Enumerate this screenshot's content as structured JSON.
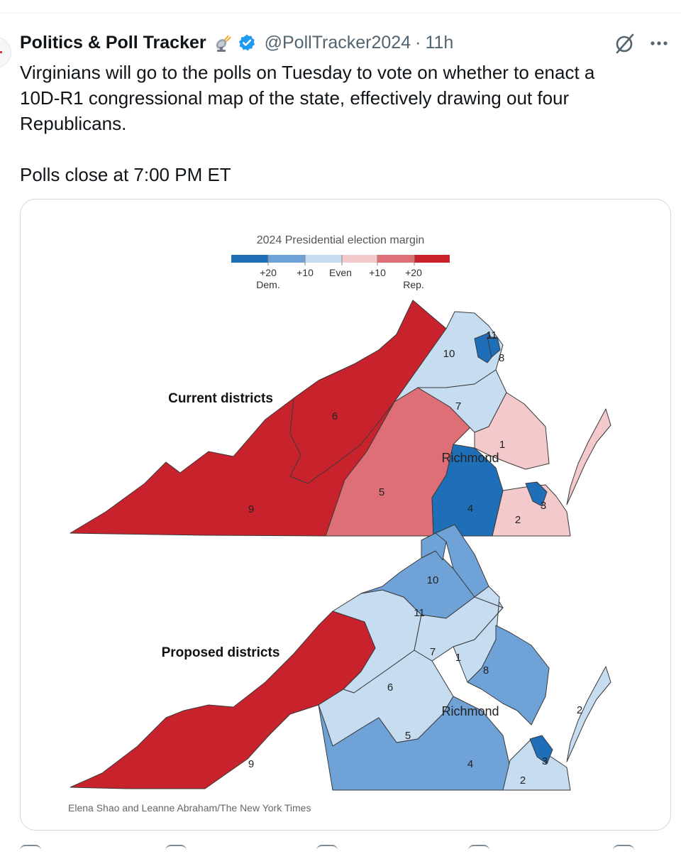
{
  "tweet": {
    "display_name": "Politics & Poll Tracker",
    "handle": "@PollTracker2024",
    "separator": "·",
    "timestamp": "11h",
    "text_lines": [
      "Virginians will go to the polls on Tuesday to vote on whether to enact a",
      "10D-R1 congressional map of the state, effectively drawing out four",
      "Republicans.",
      "Polls close at 7:00 PM ET"
    ],
    "icons": {
      "name_emoji": "satellite-antenna-icon",
      "verified": "verified-badge-icon",
      "grok": "grok-icon",
      "more": "more-options-icon"
    },
    "colors": {
      "verified": "#1d9bf0",
      "text": "#0f1419",
      "muted": "#536471"
    }
  },
  "media": {
    "legend": {
      "title": "2024 Presidential election margin",
      "ticks": [
        "+20",
        "+10",
        "Even",
        "+10",
        "+20"
      ],
      "side_labels": [
        "Dem.",
        "Rep."
      ],
      "colors": [
        "#1f6fb8",
        "#6fa3d8",
        "#c6dcf0",
        "#f3c9cc",
        "#df6f77",
        "#c8232c"
      ]
    },
    "maps": [
      {
        "title": "Current districts",
        "city": "Richmond",
        "district_labels": [
          "11",
          "10",
          "8",
          "7",
          "6",
          "1",
          "5",
          "4",
          "3",
          "2",
          "9"
        ]
      },
      {
        "title": "Proposed districts",
        "city": "Richmond",
        "district_labels": [
          "10",
          "11",
          "7",
          "1",
          "8",
          "6",
          "2",
          "5",
          "4",
          "3",
          "2",
          "9"
        ]
      }
    ],
    "credit": "Elena Shao and Leanne Abraham/The New York Times"
  }
}
